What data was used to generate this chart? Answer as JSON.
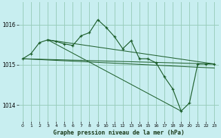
{
  "background_color": "#c8eef0",
  "plot_bg_color": "#c8eef0",
  "grid_color": "#99ccbb",
  "line_color": "#1a5c28",
  "title": "Graphe pression niveau de la mer (hPa)",
  "xlim": [
    -0.5,
    23.5
  ],
  "ylim": [
    1013.6,
    1016.55
  ],
  "yticks": [
    1014,
    1015,
    1016
  ],
  "xticks": [
    0,
    1,
    2,
    3,
    4,
    5,
    6,
    7,
    8,
    9,
    10,
    11,
    12,
    13,
    14,
    15,
    16,
    17,
    18,
    19,
    20,
    21,
    22,
    23
  ],
  "main_x": [
    0,
    1,
    2,
    3,
    4,
    5,
    6,
    7,
    8,
    9,
    10,
    11,
    12,
    13,
    14,
    15,
    16,
    17,
    18,
    19,
    20,
    21,
    22,
    23
  ],
  "main_y": [
    1015.15,
    1015.28,
    1015.55,
    1015.62,
    1015.58,
    1015.52,
    1015.48,
    1015.72,
    1015.8,
    1016.12,
    1015.93,
    1015.7,
    1015.4,
    1015.6,
    1015.15,
    1015.15,
    1015.05,
    1014.7,
    1014.4,
    1013.85,
    1014.05,
    1015.02,
    1015.02,
    1015.02
  ],
  "trend_lines": [
    {
      "x": [
        3,
        23
      ],
      "y": [
        1015.62,
        1015.02
      ]
    },
    {
      "x": [
        3,
        23
      ],
      "y": [
        1015.62,
        1015.02
      ]
    },
    {
      "x": [
        3,
        22
      ],
      "y": [
        1015.62,
        1014.95
      ]
    },
    {
      "x": [
        3,
        19
      ],
      "y": [
        1015.62,
        1013.85
      ]
    }
  ],
  "flat_lines": [
    {
      "x": [
        0,
        23
      ],
      "y": [
        1015.15,
        1015.02
      ]
    },
    {
      "x": [
        0,
        23
      ],
      "y": [
        1015.15,
        1014.95
      ]
    }
  ]
}
